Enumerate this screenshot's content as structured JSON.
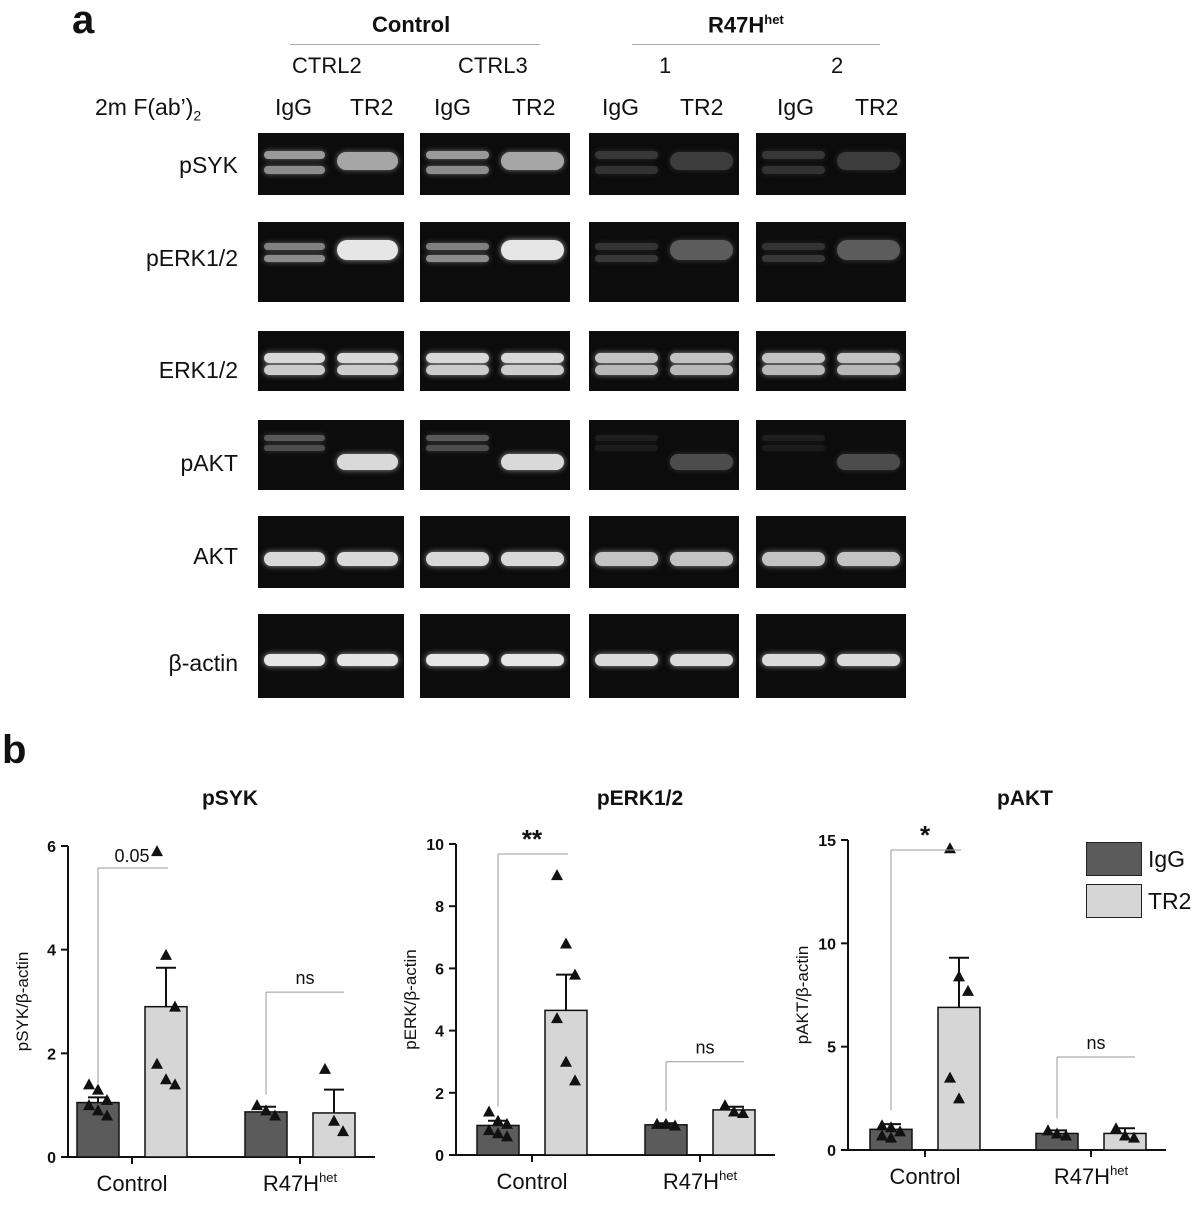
{
  "panel_a": {
    "label": "a",
    "group_control": "Control",
    "group_r47h_base": "R47H",
    "group_r47h_sup": "het",
    "subgroups": [
      "CTRL2",
      "CTRL3",
      "1",
      "2"
    ],
    "treatment_label_main": "2m F(ab’)",
    "treatment_label_sub": "2",
    "lanes": [
      "IgG",
      "TR2",
      "IgG",
      "TR2",
      "IgG",
      "TR2",
      "IgG",
      "TR2"
    ],
    "blot_rows": [
      "pSYK",
      "pERK1/2",
      "ERK1/2",
      "pAKT",
      "AKT",
      "β-actin"
    ]
  },
  "panel_b": {
    "label": "b",
    "legend": [
      {
        "name": "IgG",
        "color": "#5b5b5b"
      },
      {
        "name": "TR2",
        "color": "#d6d6d6"
      }
    ]
  },
  "chart_data": [
    {
      "type": "bar",
      "title": "pSYK",
      "ylabel": "pSYK/β-actin",
      "ylim": [
        0,
        6
      ],
      "yticks": [
        0,
        2,
        4,
        6
      ],
      "categories": [
        "Control",
        "R47H"
      ],
      "category_sup": [
        "",
        "het"
      ],
      "series": [
        {
          "name": "IgG",
          "values": [
            1.05,
            0.87
          ],
          "errors": [
            0.1,
            0.1
          ],
          "points": [
            [
              1.4,
              1.3,
              1.1,
              1.0,
              0.9,
              0.8
            ],
            [
              1.0,
              0.9,
              0.8
            ]
          ]
        },
        {
          "name": "TR2",
          "values": [
            2.9,
            0.85
          ],
          "errors": [
            0.75,
            0.45
          ],
          "points": [
            [
              5.9,
              3.9,
              2.9,
              1.8,
              1.5,
              1.4
            ],
            [
              1.7,
              0.7,
              0.5
            ]
          ]
        }
      ],
      "annotations": [
        "0.05",
        "ns"
      ]
    },
    {
      "type": "bar",
      "title": "pERK1/2",
      "ylabel": "pERK/β-actin",
      "ylim": [
        0,
        10
      ],
      "yticks": [
        0,
        2,
        4,
        6,
        8,
        10
      ],
      "categories": [
        "Control",
        "R47H"
      ],
      "category_sup": [
        "",
        "het"
      ],
      "series": [
        {
          "name": "IgG",
          "values": [
            0.95,
            0.97
          ],
          "errors": [
            0.15,
            0.05
          ],
          "points": [
            [
              1.4,
              1.1,
              1.0,
              0.8,
              0.7,
              0.6
            ],
            [
              1.0,
              1.0,
              0.95
            ]
          ]
        },
        {
          "name": "TR2",
          "values": [
            4.65,
            1.45
          ],
          "errors": [
            1.15,
            0.1
          ],
          "points": [
            [
              9.0,
              6.8,
              5.8,
              4.4,
              3.0,
              2.4
            ],
            [
              1.6,
              1.4,
              1.35
            ]
          ]
        }
      ],
      "annotations": [
        "**",
        "ns"
      ]
    },
    {
      "type": "bar",
      "title": "pAKT",
      "ylabel": "pAKT/β-actin",
      "ylim": [
        0,
        15
      ],
      "yticks": [
        0,
        5,
        10,
        15
      ],
      "categories": [
        "Control",
        "R47H"
      ],
      "category_sup": [
        "",
        "het"
      ],
      "series": [
        {
          "name": "IgG",
          "values": [
            1.0,
            0.8
          ],
          "errors": [
            0.25,
            0.15
          ],
          "points": [
            [
              1.2,
              1.1,
              0.9,
              0.7,
              0.6
            ],
            [
              0.95,
              0.8,
              0.7
            ]
          ]
        },
        {
          "name": "TR2",
          "values": [
            6.9,
            0.8
          ],
          "errors": [
            2.4,
            0.25
          ],
          "points": [
            [
              14.6,
              8.4,
              7.7,
              3.5,
              2.5
            ],
            [
              1.05,
              0.7,
              0.6
            ]
          ]
        }
      ],
      "annotations": [
        "*",
        "ns"
      ]
    }
  ]
}
